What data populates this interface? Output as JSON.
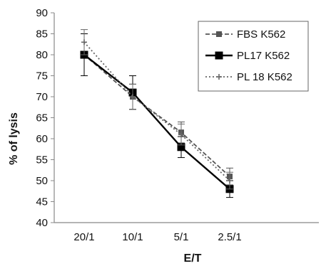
{
  "chart_data": {
    "type": "line",
    "categories": [
      "20/1",
      "10/1",
      "5/1",
      "2.5/1"
    ],
    "xlabel": "E/T",
    "ylabel": "% of lysis",
    "ylim": [
      40,
      90
    ],
    "yticks": [
      40,
      45,
      50,
      55,
      60,
      65,
      70,
      75,
      80,
      85,
      90
    ],
    "grid": false,
    "legend_position": "top-right",
    "series": [
      {
        "name": "FBS K562",
        "values": [
          80,
          70,
          61.5,
          51
        ],
        "errors": [
          5,
          3,
          2.5,
          2
        ],
        "line_style": "dashed",
        "marker": "square-small",
        "color": "#555555"
      },
      {
        "name": "PL17 K562",
        "values": [
          80,
          71,
          58,
          48
        ],
        "errors": [
          5,
          4,
          2.5,
          2
        ],
        "line_style": "solid",
        "marker": "square",
        "color": "#000000"
      },
      {
        "name": "PL 18 K562",
        "values": [
          83,
          70,
          61,
          50
        ],
        "errors": [
          3,
          3,
          2.5,
          2
        ],
        "line_style": "dotted",
        "marker": "plus",
        "color": "#666666"
      }
    ]
  }
}
